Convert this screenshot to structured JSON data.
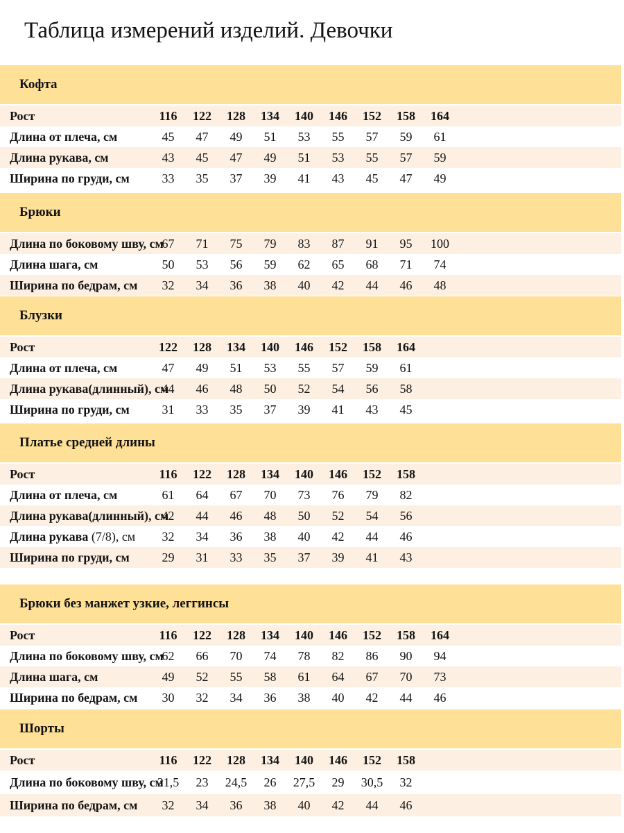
{
  "page": {
    "title": "Таблица измерений изделий. Девочки"
  },
  "colors": {
    "section_band": "#FFE097",
    "row_stripe": "#FDF0E2",
    "row_plain": "#FFFFFF",
    "text": "#131313"
  },
  "sections": [
    {
      "id": "kofta",
      "title": "Кофта",
      "rows": [
        {
          "label": "Рост",
          "header": true,
          "values": [
            "116",
            "122",
            "128",
            "134",
            "140",
            "146",
            "152",
            "158",
            "164"
          ]
        },
        {
          "label": "Длина от плеча, см",
          "values": [
            "45",
            "47",
            "49",
            "51",
            "53",
            "55",
            "57",
            "59",
            "61"
          ]
        },
        {
          "label": "Длина рукава, см",
          "values": [
            "43",
            "45",
            "47",
            "49",
            "51",
            "53",
            "55",
            "57",
            "59"
          ]
        },
        {
          "label": "Ширина по груди, см",
          "values": [
            "33",
            "35",
            "37",
            "39",
            "41",
            "43",
            "45",
            "47",
            "49"
          ]
        }
      ]
    },
    {
      "id": "bryuki",
      "title": "Брюки",
      "rows": [
        {
          "label": "Длина по боковому шву, см",
          "values": [
            "67",
            "71",
            "75",
            "79",
            "83",
            "87",
            "91",
            "95",
            "100"
          ]
        },
        {
          "label": "Длина шага, см",
          "values": [
            "50",
            "53",
            "56",
            "59",
            "62",
            "65",
            "68",
            "71",
            "74"
          ]
        },
        {
          "label": "Ширина по бедрам, см",
          "values": [
            "32",
            "34",
            "36",
            "38",
            "40",
            "42",
            "44",
            "46",
            "48"
          ]
        }
      ]
    },
    {
      "id": "bluzki",
      "title": "Блузки",
      "rows": [
        {
          "label": "Рост",
          "header": true,
          "values": [
            "122",
            "128",
            "134",
            "140",
            "146",
            "152",
            "158",
            "164"
          ]
        },
        {
          "label": "Длина от плеча, см",
          "values": [
            "47",
            "49",
            "51",
            "53",
            "55",
            "57",
            "59",
            "61"
          ]
        },
        {
          "label": "Длина рукава(длинный), см",
          "values": [
            "44",
            "46",
            "48",
            "50",
            "52",
            "54",
            "56",
            "58"
          ]
        },
        {
          "label": "Ширина по груди, см",
          "values": [
            "31",
            "33",
            "35",
            "37",
            "39",
            "41",
            "43",
            "45"
          ]
        }
      ]
    },
    {
      "id": "platye-sredney-dliny",
      "title": "Платье средней длины",
      "rows": [
        {
          "label": "Рост",
          "header": true,
          "values": [
            "116",
            "122",
            "128",
            "134",
            "140",
            "146",
            "152",
            "158"
          ]
        },
        {
          "label": "Длина от плеча, см",
          "values": [
            "61",
            "64",
            "67",
            "70",
            "73",
            "76",
            "79",
            "82"
          ]
        },
        {
          "label": "Длина рукава(длинный), см",
          "values": [
            "42",
            "44",
            "46",
            "48",
            "50",
            "52",
            "54",
            "56"
          ]
        },
        {
          "label": "Длина рукава",
          "label_light": " (7/8), см",
          "values": [
            "32",
            "34",
            "36",
            "38",
            "40",
            "42",
            "44",
            "46"
          ]
        },
        {
          "label": "Ширина по груди, см",
          "values": [
            "29",
            "31",
            "33",
            "35",
            "37",
            "39",
            "41",
            "43"
          ]
        }
      ]
    },
    {
      "id": "leggingsy",
      "title": "Брюки без манжет узкие, леггинсы",
      "rows": [
        {
          "label": "Рост",
          "header": true,
          "values": [
            "116",
            "122",
            "128",
            "134",
            "140",
            "146",
            "152",
            "158",
            "164"
          ]
        },
        {
          "label": "Длина по боковому шву, см",
          "values": [
            "62",
            "66",
            "70",
            "74",
            "78",
            "82",
            "86",
            "90",
            "94"
          ]
        },
        {
          "label": "Длина шага, см",
          "values": [
            "49",
            "52",
            "55",
            "58",
            "61",
            "64",
            "67",
            "70",
            "73"
          ]
        },
        {
          "label": "Ширина по бедрам, см",
          "values": [
            "30",
            "32",
            "34",
            "36",
            "38",
            "40",
            "42",
            "44",
            "46"
          ]
        }
      ]
    },
    {
      "id": "shorty",
      "title": "Шорты",
      "rows": [
        {
          "label": "Рост",
          "header": true,
          "values": [
            "116",
            "122",
            "128",
            "134",
            "140",
            "146",
            "152",
            "158"
          ]
        },
        {
          "label": "Длина по боковому шву, см",
          "values": [
            "21,5",
            "23",
            "24,5",
            "26",
            "27,5",
            "29",
            "30,5",
            "32"
          ]
        },
        {
          "label": "Ширина по бедрам, см",
          "values": [
            "32",
            "34",
            "36",
            "38",
            "40",
            "42",
            "44",
            "46"
          ]
        }
      ]
    }
  ]
}
